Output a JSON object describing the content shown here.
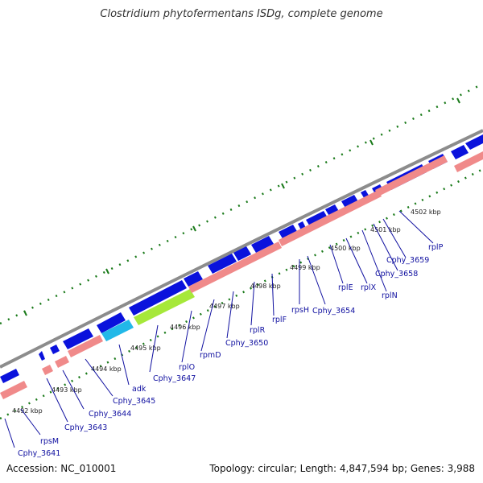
{
  "title": "Clostridium phytofermentans ISDg, complete genome",
  "footer": {
    "accession": "Accession: NC_010001",
    "topology": "Topology: circular; Length: 4,847,594 bp; Genes: 3,988"
  },
  "colors": {
    "backbone": "#8c8c8c",
    "strand_gene": "#0a12dc",
    "cds": "#f08a8a",
    "highlight_green": "#a6e83a",
    "highlight_cyan": "#22b8e8",
    "tick": "#1a7a1a",
    "label": "#1010a0"
  },
  "kbp_labels": [
    "4492 kbp",
    "4493 kbp",
    "4494 kbp",
    "4495 kbp",
    "4496 kbp",
    "4497 kbp",
    "4498 kbp",
    "4499 kbp",
    "4500 kbp",
    "4501 kbp",
    "4502 kbp"
  ],
  "genes": [
    "Cphy_3641",
    "rpsM",
    "Cphy_3643",
    "Cphy_3644",
    "Cphy_3645",
    "adk",
    "Cphy_3647",
    "rplO",
    "rpmD",
    "Cphy_3650",
    "rplR",
    "rplF",
    "rpsH",
    "Cphy_3654",
    "rplE",
    "rplX",
    "rplN",
    "Cphy_3658",
    "Cphy_3659",
    "rplP"
  ]
}
